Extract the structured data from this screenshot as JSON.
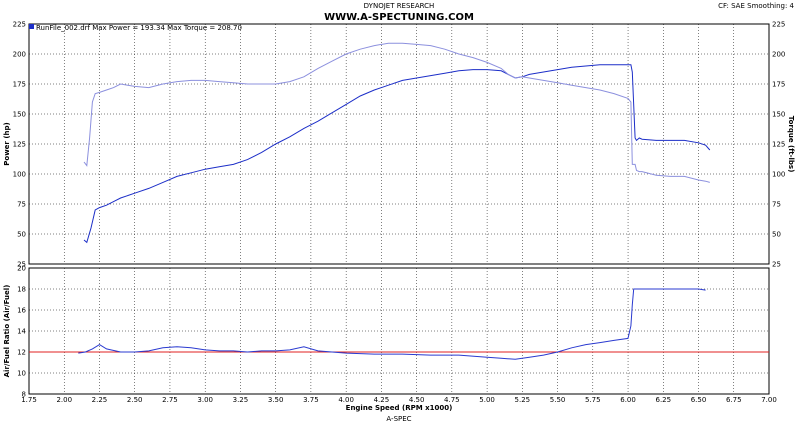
{
  "header": {
    "company": "DYNOJET RESEARCH",
    "website": "WWW.A-SPECTUNING.COM",
    "settings": "CF: SAE  Smoothing: 4",
    "footer": "A-SPEC"
  },
  "legend": {
    "text": "RunFile_002.drf Max Power = 193.34    Max Torque = 208.70"
  },
  "colors": {
    "power": "#1c2ec8",
    "torque": "#8c90de",
    "afr": "#2a3ad0",
    "afr_reference": "#e02020",
    "grid": "#000000"
  },
  "chart_data": [
    {
      "type": "line",
      "name": "power-torque",
      "xlabel": "Engine Speed (RPM x1000)",
      "ylabel": "Power (hp)",
      "ylabel_right": "Torque (ft-lbs)",
      "xlim": [
        1.75,
        7.0
      ],
      "ylim": [
        25,
        225
      ],
      "ylim_right": [
        25,
        225
      ],
      "x_ticks": [
        "1.75",
        "2.00",
        "2.25",
        "2.50",
        "2.75",
        "3.00",
        "3.25",
        "3.50",
        "3.75",
        "4.00",
        "4.25",
        "4.50",
        "4.75",
        "5.00",
        "5.25",
        "5.50",
        "5.75",
        "6.00",
        "6.25",
        "6.50",
        "6.75",
        "7.00"
      ],
      "y_ticks": [
        "25",
        "50",
        "75",
        "100",
        "125",
        "150",
        "175",
        "200",
        "225"
      ],
      "y_ticks_right": [
        "25",
        "50",
        "75",
        "100",
        "125",
        "150",
        "175",
        "200",
        "225"
      ],
      "grid": true,
      "series": [
        {
          "name": "Power",
          "x": [
            2.14,
            2.16,
            2.19,
            2.22,
            2.25,
            2.3,
            2.35,
            2.4,
            2.5,
            2.6,
            2.7,
            2.8,
            2.9,
            3.0,
            3.1,
            3.2,
            3.3,
            3.4,
            3.5,
            3.6,
            3.7,
            3.8,
            3.9,
            4.0,
            4.1,
            4.2,
            4.3,
            4.4,
            4.5,
            4.6,
            4.7,
            4.8,
            4.9,
            5.0,
            5.1,
            5.15,
            5.2,
            5.25,
            5.3,
            5.4,
            5.5,
            5.6,
            5.7,
            5.8,
            5.9,
            6.0,
            6.02,
            6.03,
            6.05,
            6.06,
            6.08,
            6.1,
            6.2,
            6.3,
            6.4,
            6.5,
            6.55,
            6.58
          ],
          "values": [
            45,
            43,
            55,
            70,
            72,
            74,
            77,
            80,
            84,
            88,
            93,
            98,
            101,
            104,
            106,
            108,
            112,
            118,
            125,
            131,
            138,
            144,
            151,
            158,
            165,
            170,
            174,
            178,
            180,
            182,
            184,
            186,
            187,
            187,
            186,
            183,
            180,
            181,
            183,
            185,
            187,
            189,
            190,
            191,
            191,
            191,
            191,
            185,
            130,
            128,
            130,
            129,
            128,
            128,
            128,
            126,
            124,
            120
          ]
        },
        {
          "name": "Torque",
          "x": [
            2.14,
            2.16,
            2.18,
            2.2,
            2.22,
            2.25,
            2.3,
            2.35,
            2.4,
            2.45,
            2.5,
            2.6,
            2.7,
            2.8,
            2.9,
            3.0,
            3.1,
            3.2,
            3.3,
            3.4,
            3.5,
            3.6,
            3.7,
            3.8,
            3.9,
            4.0,
            4.1,
            4.2,
            4.3,
            4.4,
            4.5,
            4.6,
            4.7,
            4.8,
            4.9,
            5.0,
            5.1,
            5.15,
            5.2,
            5.25,
            5.3,
            5.4,
            5.5,
            5.6,
            5.7,
            5.8,
            5.9,
            6.0,
            6.02,
            6.03,
            6.05,
            6.06,
            6.08,
            6.1,
            6.2,
            6.3,
            6.4,
            6.5,
            6.55,
            6.58
          ],
          "values": [
            110,
            107,
            130,
            160,
            167,
            168,
            170,
            172,
            175,
            174,
            173,
            172,
            175,
            177,
            178,
            178,
            177,
            176,
            175,
            175,
            175,
            177,
            181,
            188,
            194,
            200,
            204,
            207,
            209,
            209,
            208,
            207,
            204,
            200,
            197,
            193,
            188,
            183,
            180,
            181,
            180,
            178,
            176,
            174,
            172,
            170,
            167,
            163,
            160,
            108,
            108,
            103,
            102,
            102,
            99,
            98,
            98,
            95,
            94,
            93
          ]
        }
      ]
    },
    {
      "type": "line",
      "name": "air-fuel",
      "xlabel": "Engine Speed (RPM x1000)",
      "ylabel": "Air/Fuel Ratio (Air/Fuel)",
      "xlim": [
        1.75,
        7.0
      ],
      "ylim": [
        8,
        20
      ],
      "x_ticks": [
        "1.75",
        "2.00",
        "2.25",
        "2.50",
        "2.75",
        "3.00",
        "3.25",
        "3.50",
        "3.75",
        "4.00",
        "4.25",
        "4.50",
        "4.75",
        "5.00",
        "5.25",
        "5.50",
        "5.75",
        "6.00",
        "6.25",
        "6.50",
        "6.75",
        "7.00"
      ],
      "y_ticks": [
        "8",
        "10",
        "12",
        "14",
        "16",
        "18",
        "20"
      ],
      "grid": true,
      "reference_line": 12.0,
      "series": [
        {
          "name": "Air/Fuel",
          "x": [
            2.1,
            2.15,
            2.2,
            2.25,
            2.3,
            2.4,
            2.5,
            2.6,
            2.7,
            2.8,
            2.9,
            3.0,
            3.1,
            3.2,
            3.3,
            3.4,
            3.5,
            3.6,
            3.7,
            3.8,
            3.9,
            4.0,
            4.2,
            4.4,
            4.6,
            4.8,
            5.0,
            5.1,
            5.2,
            5.3,
            5.4,
            5.5,
            5.6,
            5.7,
            5.8,
            5.9,
            6.0,
            6.02,
            6.03,
            6.04,
            6.05,
            6.3,
            6.5,
            6.55
          ],
          "values": [
            11.9,
            12.0,
            12.3,
            12.7,
            12.3,
            12.0,
            12.0,
            12.1,
            12.4,
            12.5,
            12.4,
            12.2,
            12.1,
            12.1,
            12.0,
            12.1,
            12.1,
            12.2,
            12.5,
            12.1,
            12.0,
            11.9,
            11.8,
            11.8,
            11.7,
            11.7,
            11.5,
            11.4,
            11.3,
            11.5,
            11.7,
            12.0,
            12.4,
            12.7,
            12.9,
            13.1,
            13.3,
            14.5,
            16.5,
            18.0,
            18.0,
            18.0,
            18.0,
            17.9
          ]
        }
      ]
    }
  ]
}
